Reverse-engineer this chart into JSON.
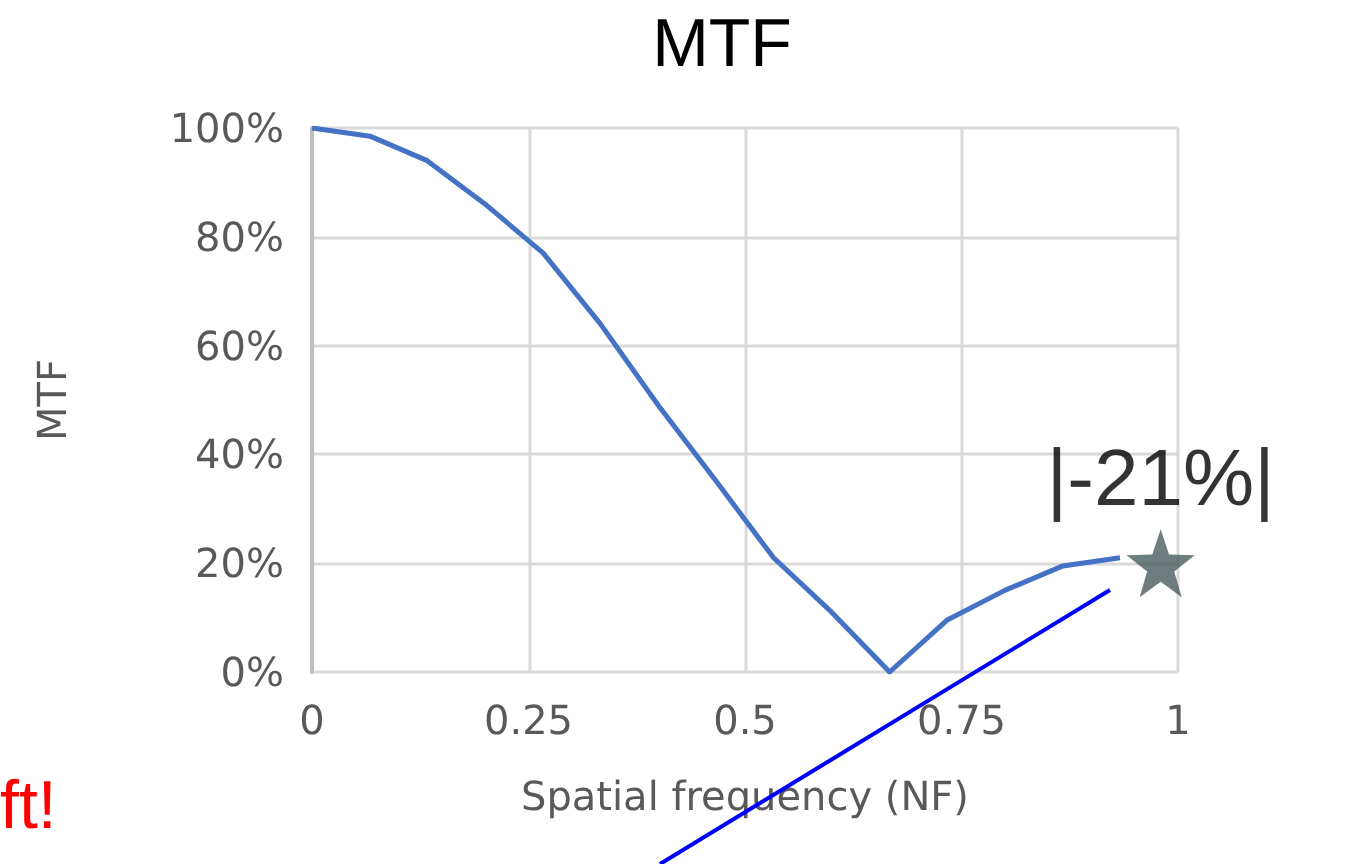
{
  "chart_data": {
    "type": "line",
    "title": "MTF",
    "xlabel": "Spatial frequency (NF)",
    "ylabel": "MTF",
    "series": [
      {
        "color": "#4472c4",
        "marker": "none",
        "x": [
          0,
          0.067,
          0.133,
          0.2,
          0.267,
          0.333,
          0.4,
          0.467,
          0.533,
          0.6,
          0.667,
          0.733,
          0.8,
          0.867,
          0.933
        ],
        "values": [
          100,
          98.5,
          94,
          86,
          77,
          64,
          49,
          35,
          21,
          11,
          0,
          9.5,
          15,
          19.5,
          21
        ]
      },
      {
        "type": "scatter",
        "color": "#4a5c5c",
        "marker": "star",
        "x": [
          0.98
        ],
        "values": [
          20
        ]
      }
    ],
    "annotations": [
      {
        "text": "|-21%|",
        "x": 0.98,
        "y": 20
      },
      "ft!"
    ],
    "xlim": [
      0,
      1
    ],
    "xticks": [
      0,
      0.25,
      0.5,
      0.75,
      1
    ],
    "ylim": [
      0,
      100
    ],
    "yticks": [
      {
        "value": 0,
        "label": "0%"
      },
      {
        "value": 20,
        "label": "20%"
      },
      {
        "value": 40,
        "label": "40%"
      },
      {
        "value": 60,
        "label": "60%"
      },
      {
        "value": 80,
        "label": "80%"
      },
      {
        "value": 100,
        "label": "100%"
      }
    ],
    "grid": true
  }
}
